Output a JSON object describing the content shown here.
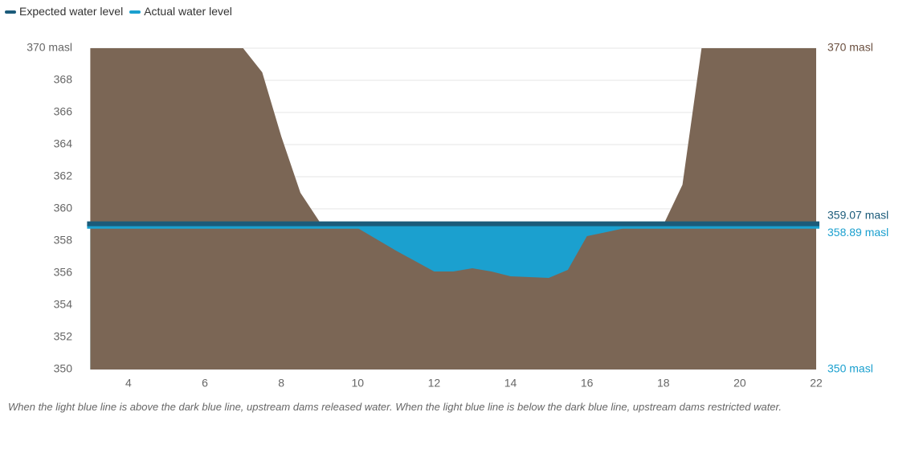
{
  "chart_data": {
    "type": "area",
    "x": [
      3,
      4,
      5,
      6,
      7,
      7.5,
      8,
      8.5,
      9,
      10,
      11,
      12,
      12.5,
      13,
      13.5,
      14,
      15,
      15.5,
      16,
      17,
      18,
      18.5,
      19,
      20,
      21,
      22
    ],
    "terrain": {
      "color": "#7b6655",
      "values": [
        370,
        370,
        370,
        370,
        370,
        368.5,
        364.5,
        361,
        359.2,
        358.8,
        357.4,
        356.1,
        356.1,
        356.3,
        356.1,
        355.8,
        355.7,
        356.2,
        358.3,
        358.8,
        359,
        361.5,
        370,
        370,
        370,
        370
      ]
    },
    "series": [
      {
        "name": "Expected water level",
        "color": "#1b5b7a",
        "value": 359.07
      },
      {
        "name": "Actual water level",
        "color": "#1ba0cf",
        "value": 358.89
      }
    ],
    "xlim": [
      3,
      22
    ],
    "xticks": [
      4,
      6,
      8,
      10,
      12,
      14,
      16,
      18,
      20,
      22
    ],
    "ylim": [
      350,
      370
    ],
    "yticks": [
      350,
      352,
      354,
      356,
      358,
      360,
      362,
      364,
      366,
      368,
      {
        "value": 370,
        "label": "370 masl"
      }
    ],
    "y2lim": [
      350,
      370
    ],
    "y2ticks": [
      {
        "value": 370,
        "label": "370 masl"
      },
      {
        "value": 359.07,
        "label": "359.07 masl"
      },
      {
        "value": 358.89,
        "label": "358.89 masl"
      },
      {
        "value": 350,
        "label": "350 masl"
      }
    ],
    "grid": true,
    "note": "When the light blue line is above the dark blue line, upstream dams released water. When the light blue line is below the dark blue line, upstream dams restricted water."
  }
}
